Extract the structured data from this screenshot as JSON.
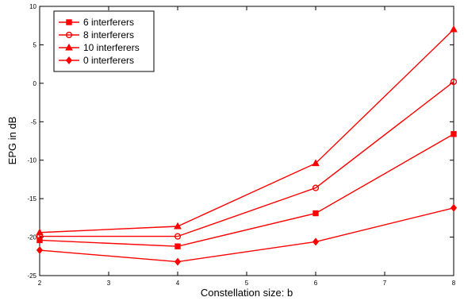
{
  "chart_data": {
    "type": "line",
    "title": "",
    "xlabel": "Constellation size: b",
    "ylabel": "EPG in dB",
    "xlim": [
      2,
      8
    ],
    "ylim": [
      -25,
      10
    ],
    "x_ticks": [
      2,
      3,
      4,
      5,
      6,
      7,
      8
    ],
    "y_ticks": [
      -25,
      -20,
      -15,
      -10,
      -5,
      0,
      5,
      10
    ],
    "x_tick_labels": [
      "2",
      "3",
      "4",
      "5",
      "6",
      "7",
      "8"
    ],
    "y_tick_labels": [
      "-25",
      "-20",
      "-15",
      "-10",
      "-5",
      "0",
      "5",
      "10"
    ],
    "grid": false,
    "legend_position": "top-left",
    "series": [
      {
        "name": "6 interferers",
        "marker": "square",
        "color": "#ff0000",
        "x": [
          2,
          4,
          6,
          8
        ],
        "y": [
          -20.4,
          -21.2,
          -16.9,
          -6.6
        ]
      },
      {
        "name": "8 interferers",
        "marker": "circle",
        "color": "#ff0000",
        "x": [
          2,
          4,
          6,
          8
        ],
        "y": [
          -19.9,
          -19.9,
          -13.6,
          0.2
        ]
      },
      {
        "name": "10 interferers",
        "marker": "triangle",
        "color": "#ff0000",
        "x": [
          2,
          4,
          6,
          8
        ],
        "y": [
          -19.4,
          -18.6,
          -10.4,
          7.0
        ]
      },
      {
        "name": "0 interferers",
        "marker": "diamond",
        "color": "#ff0000",
        "x": [
          2,
          4,
          6,
          8
        ],
        "y": [
          -21.7,
          -23.2,
          -20.6,
          -16.2
        ]
      }
    ]
  }
}
